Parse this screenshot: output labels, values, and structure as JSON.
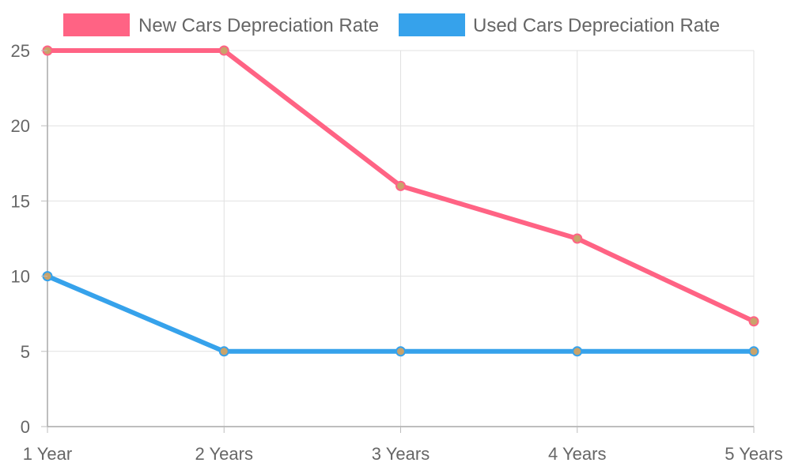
{
  "chart_data": {
    "type": "line",
    "categories": [
      "1 Year",
      "2 Years",
      "3 Years",
      "4 Years",
      "5 Years"
    ],
    "series": [
      {
        "name": "New Cars Depreciation Rate",
        "values": [
          25,
          25,
          16,
          12.5,
          7
        ],
        "color": "#ff6384"
      },
      {
        "name": "Used Cars Depreciation Rate",
        "values": [
          10,
          5,
          5,
          5,
          5
        ],
        "color": "#36a2eb"
      }
    ],
    "ylim": [
      0,
      25
    ],
    "yticks": [
      0,
      5,
      10,
      15,
      20,
      25
    ],
    "grid": true,
    "legend": "top-center",
    "point_fill_color": "#c9a36b"
  }
}
